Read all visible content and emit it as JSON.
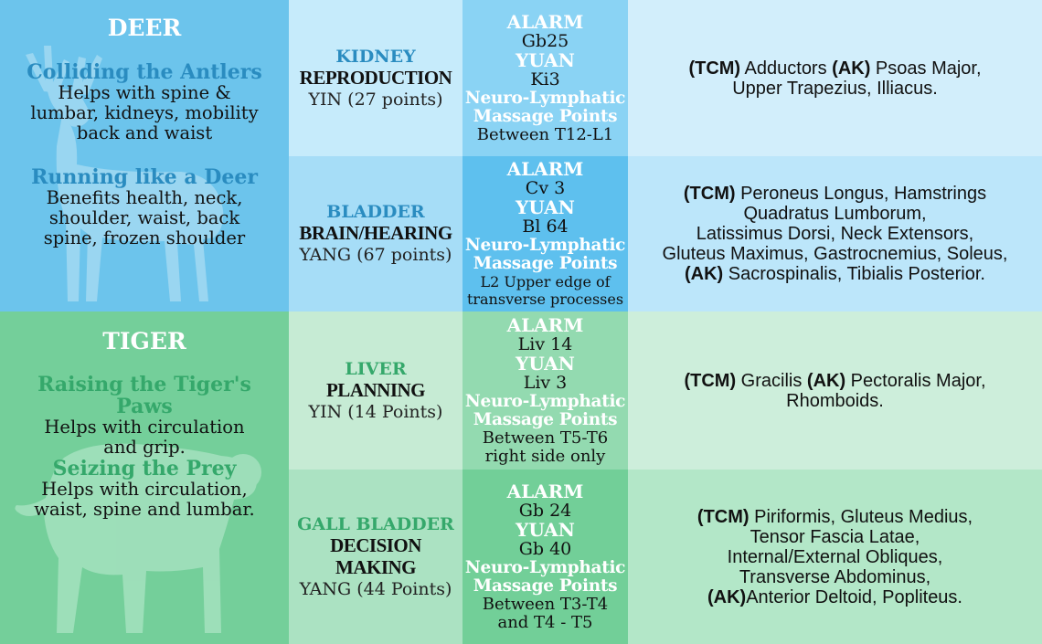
{
  "deer": {
    "title": "DEER",
    "exercises": [
      {
        "name": "Colliding the Antlers",
        "desc_lines": [
          "Helps with spine &",
          "lumbar, kidneys, mobility",
          "back and waist"
        ]
      },
      {
        "name": "Running like a Deer",
        "desc_lines": [
          "Benefits health, neck,",
          "shoulder, waist, back",
          "spine, frozen shoulder"
        ]
      }
    ]
  },
  "tiger": {
    "title": "TIGER",
    "exercises": [
      {
        "name": "Raising the Tiger's Paws",
        "desc_lines": [
          "Helps with circulation",
          "and grip."
        ]
      },
      {
        "name": "Seizing the Prey",
        "desc_lines": [
          "Helps with circulation,",
          "waist, spine and lumbar."
        ]
      }
    ]
  },
  "rows": [
    {
      "meridian": "KIDNEY",
      "function": "REPRODUCTION",
      "type": "YIN (27 points)",
      "points": {
        "alarm_label": "ALARM",
        "alarm": "Gb25",
        "yuan_label": "YUAN",
        "yuan": "Ki3",
        "nl_label_1": "Neuro-Lymphatic",
        "nl_label_2": "Massage Points",
        "location_lines": [
          "Between T12-L1"
        ]
      },
      "muscles": {
        "tcm_label": "(TCM)",
        "tcm_text_1": " Adductors ",
        "ak_label": "(AK)",
        "ak_text_1": " Psoas Major,",
        "line_2": "Upper Trapezius, Illiacus."
      }
    },
    {
      "meridian": "BLADDER",
      "function": "BRAIN/HEARING",
      "type": "YANG (67 points)",
      "points": {
        "alarm_label": "ALARM",
        "alarm": "Cv 3",
        "yuan_label": "YUAN",
        "yuan": "Bl 64",
        "nl_label_1": "Neuro-Lymphatic",
        "nl_label_2": "Massage Points",
        "location_lines": [
          "L2 Upper edge of",
          "transverse processes"
        ]
      },
      "muscles": {
        "tcm_label": "(TCM)",
        "tcm_text_1": " Peroneus Longus, Hamstrings",
        "line_2": "Quadratus Lumborum,",
        "line_3": "Latissimus Dorsi, Neck Extensors,",
        "line_4": "Gluteus Maximus, Gastrocnemius, Soleus,",
        "ak_label": "(AK)",
        "ak_text_1": " Sacrospinalis, Tibialis Posterior."
      }
    },
    {
      "meridian": "LIVER",
      "function": "PLANNING",
      "type": "YIN (14 Points)",
      "points": {
        "alarm_label": "ALARM",
        "alarm": "Liv 14",
        "yuan_label": "YUAN",
        "yuan": "Liv 3",
        "nl_label_1": "Neuro-Lymphatic",
        "nl_label_2": "Massage Points",
        "location_lines": [
          "Between T5-T6",
          "right side only"
        ]
      },
      "muscles": {
        "tcm_label": "(TCM)",
        "tcm_text_1": " Gracilis ",
        "ak_label": "(AK)",
        "ak_text_1": " Pectoralis Major,",
        "line_2": "Rhomboids."
      }
    },
    {
      "meridian": "GALL BLADDER",
      "function": "DECISION MAKING",
      "type": "YANG (44 Points)",
      "points": {
        "alarm_label": "ALARM",
        "alarm": "Gb 24",
        "yuan_label": "YUAN",
        "yuan": "Gb 40",
        "nl_label_1": "Neuro-Lymphatic",
        "nl_label_2": "Massage Points",
        "location_lines": [
          "Between T3-T4",
          "and T4 - T5"
        ]
      },
      "muscles": {
        "tcm_label": "(TCM)",
        "tcm_text_1": " Piriformis, Gluteus Medius,",
        "line_2": "Tensor Fascia Latae,",
        "line_3": "Internal/External Obliques,",
        "line_4": "Transverse Abdominus,",
        "ak_label": "(AK)",
        "ak_text_1": "Anterior Deltoid, Popliteus."
      }
    }
  ],
  "colors": {
    "deer_panel": "#6cc4ec",
    "tiger_panel": "#74cf9a",
    "kidney_meridian": "#c6ebfb",
    "kidney_points": "#8ad3f4",
    "kidney_muscles": "#d2eefb",
    "bladder_meridian": "#a6ddf7",
    "bladder_points": "#5ec0ee",
    "bladder_muscles": "#bce6fa",
    "liver_meridian": "#c6ebd4",
    "liver_points": "#93dab0",
    "liver_muscles": "#cdeedb",
    "gallbladder_meridian": "#abe2c2",
    "gallbladder_points": "#72cf98",
    "gallbladder_muscles": "#b3e7c8",
    "blue_title": "#2a8cc0",
    "green_title": "#35a86b"
  },
  "icons": [
    "deer-silhouette-icon",
    "tiger-silhouette-icon"
  ]
}
